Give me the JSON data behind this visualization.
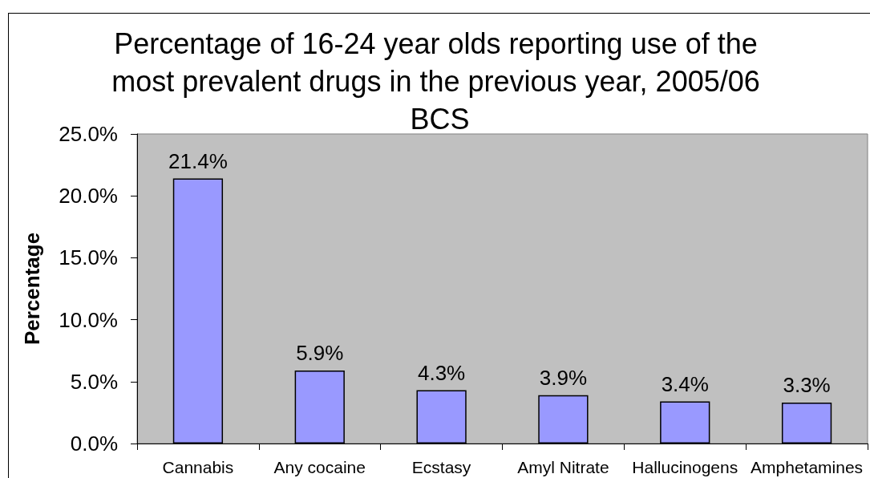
{
  "chart_data": {
    "type": "bar",
    "title": "Percentage of 16-24 year olds reporting use of the most prevalent drugs in the previous year, 2005/06 BCS",
    "ylabel": "Percentage",
    "categories": [
      "Cannabis",
      "Any cocaine",
      "Ecstasy",
      "Amyl Nitrate",
      "Hallucinogens",
      "Amphetamines"
    ],
    "values": [
      21.4,
      5.9,
      4.3,
      3.9,
      3.4,
      3.3
    ],
    "value_labels": [
      "21.4%",
      "5.9%",
      "4.3%",
      "3.9%",
      "3.4%",
      "3.3%"
    ],
    "color": "#9999ff",
    "ylim": [
      0,
      25
    ],
    "yticks": [
      {
        "value": 0,
        "label": "0.0%"
      },
      {
        "value": 5,
        "label": "5.0%"
      },
      {
        "value": 10,
        "label": "10.0%"
      },
      {
        "value": 15,
        "label": "15.0%"
      },
      {
        "value": 20,
        "label": "20.0%"
      },
      {
        "value": 25,
        "label": "25.0%"
      }
    ],
    "grid": false
  }
}
